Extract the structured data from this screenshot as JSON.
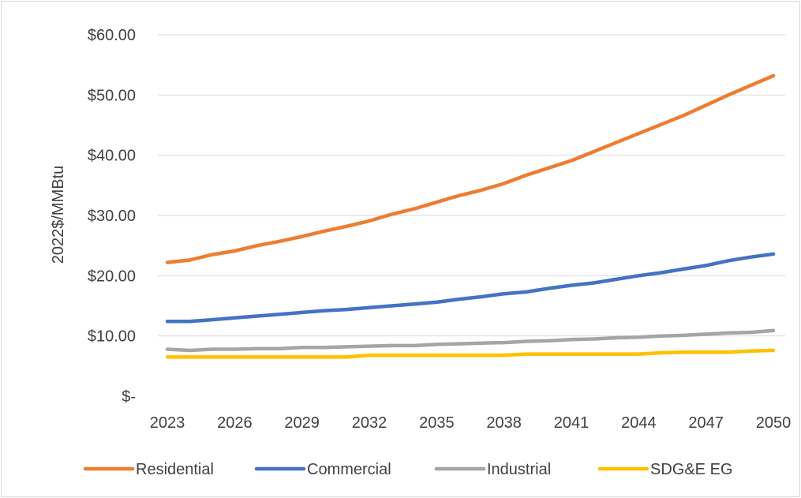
{
  "chart_data": {
    "type": "line",
    "title": "",
    "xlabel": "",
    "ylabel": "2022$/MMBtu",
    "ylim": [
      0,
      60
    ],
    "yticks": [
      0,
      10,
      20,
      30,
      40,
      50,
      60
    ],
    "ytick_labels": [
      "$-",
      "$10.00",
      "$20.00",
      "$30.00",
      "$40.00",
      "$50.00",
      "$60.00"
    ],
    "x": [
      2023,
      2024,
      2025,
      2026,
      2027,
      2028,
      2029,
      2030,
      2031,
      2032,
      2033,
      2034,
      2035,
      2036,
      2037,
      2038,
      2039,
      2040,
      2041,
      2042,
      2043,
      2044,
      2045,
      2046,
      2047,
      2048,
      2049,
      2050
    ],
    "xtick_labels": [
      "2023",
      "2026",
      "2029",
      "2032",
      "2035",
      "2038",
      "2041",
      "2044",
      "2047",
      "2050"
    ],
    "grid": true,
    "legend_position": "bottom",
    "series": [
      {
        "name": "Residential",
        "color": "#ed7d31",
        "values": [
          22.2,
          22.6,
          23.5,
          24.1,
          25.0,
          25.7,
          26.5,
          27.4,
          28.2,
          29.1,
          30.2,
          31.1,
          32.2,
          33.3,
          34.2,
          35.3,
          36.7,
          37.9,
          39.1,
          40.6,
          42.1,
          43.6,
          45.1,
          46.6,
          48.3,
          50.0,
          51.6,
          53.2
        ]
      },
      {
        "name": "Commercial",
        "color": "#4472c4",
        "values": [
          12.4,
          12.4,
          12.7,
          13.0,
          13.3,
          13.6,
          13.9,
          14.2,
          14.4,
          14.7,
          15.0,
          15.3,
          15.6,
          16.1,
          16.5,
          17.0,
          17.3,
          17.9,
          18.4,
          18.8,
          19.4,
          20.0,
          20.5,
          21.1,
          21.7,
          22.5,
          23.1,
          23.6
        ]
      },
      {
        "name": "Industrial",
        "color": "#a5a5a5",
        "values": [
          7.8,
          7.6,
          7.8,
          7.8,
          7.9,
          7.9,
          8.1,
          8.1,
          8.2,
          8.3,
          8.4,
          8.4,
          8.6,
          8.7,
          8.8,
          8.9,
          9.1,
          9.2,
          9.4,
          9.5,
          9.7,
          9.8,
          10.0,
          10.1,
          10.3,
          10.5,
          10.6,
          10.9
        ]
      },
      {
        "name": "SDG&E EG",
        "color": "#ffc000",
        "values": [
          6.5,
          6.5,
          6.5,
          6.5,
          6.5,
          6.5,
          6.5,
          6.5,
          6.5,
          6.8,
          6.8,
          6.8,
          6.8,
          6.8,
          6.8,
          6.8,
          7.0,
          7.0,
          7.0,
          7.0,
          7.0,
          7.0,
          7.2,
          7.3,
          7.3,
          7.3,
          7.5,
          7.6
        ]
      }
    ]
  }
}
